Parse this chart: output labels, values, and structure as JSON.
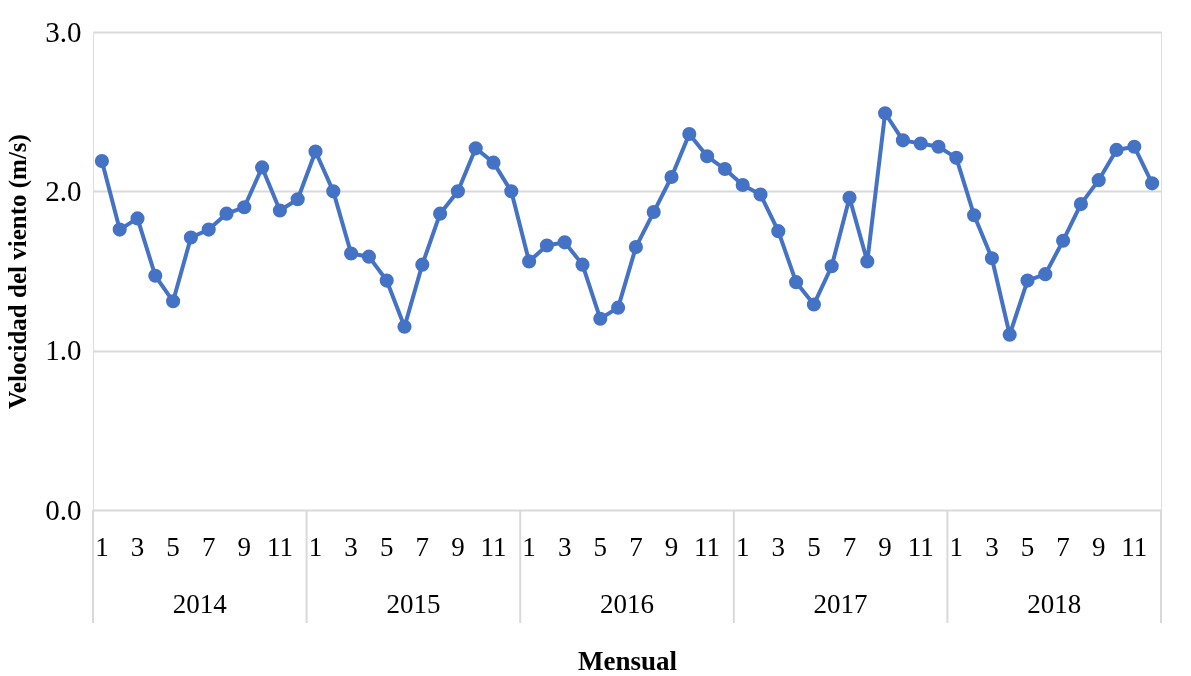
{
  "chart_data": {
    "type": "line",
    "xlabel": "Mensual",
    "ylabel": "Velocidad del viento (m/s)",
    "categories": [
      "1",
      null,
      "3",
      null,
      "5",
      null,
      "7",
      null,
      "9",
      null,
      "11",
      null,
      "1",
      null,
      "3",
      null,
      "5",
      null,
      "7",
      null,
      "9",
      null,
      "11",
      null,
      "1",
      null,
      "3",
      null,
      "5",
      null,
      "7",
      null,
      "9",
      null,
      "11",
      null,
      "1",
      null,
      "3",
      null,
      "5",
      null,
      "7",
      null,
      "9",
      null,
      "11",
      null,
      "1",
      null,
      "3",
      null,
      "5",
      null,
      "7",
      null,
      "9",
      null,
      "11",
      null
    ],
    "annotations": [
      "2014",
      "2015",
      "2016",
      "2017",
      "2018"
    ],
    "series": [
      {
        "color": "#4472c4",
        "values": [
          2.19,
          1.76,
          1.83,
          1.47,
          1.31,
          1.71,
          1.76,
          1.86,
          1.9,
          2.15,
          1.88,
          1.95,
          2.25,
          2.0,
          1.61,
          1.59,
          1.44,
          1.15,
          1.54,
          1.86,
          2.0,
          2.27,
          2.18,
          2.0,
          1.56,
          1.66,
          1.68,
          1.54,
          1.2,
          1.27,
          1.65,
          1.87,
          2.09,
          2.36,
          2.22,
          2.14,
          2.04,
          1.98,
          1.75,
          1.43,
          1.29,
          1.53,
          1.96,
          1.56,
          2.49,
          2.32,
          2.3,
          2.28,
          2.21,
          1.85,
          1.58,
          1.1,
          1.44,
          1.48,
          1.69,
          1.92,
          2.07,
          2.26,
          2.28,
          2.05
        ]
      }
    ],
    "ylim": [
      0,
      3
    ],
    "yticks": [
      {
        "value": 0,
        "label": "0.0"
      },
      {
        "value": 1,
        "label": "1.0"
      },
      {
        "value": 2,
        "label": "2.0"
      },
      {
        "value": 3,
        "label": "3.0"
      }
    ],
    "grid": "y",
    "marker": "circle",
    "line_style": "solid"
  }
}
